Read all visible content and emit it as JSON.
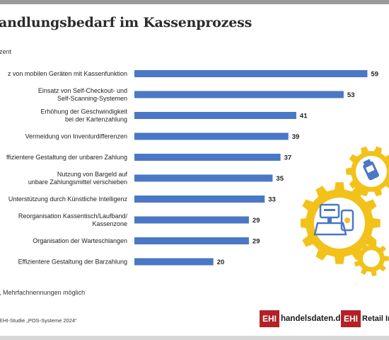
{
  "header": {
    "title": "andlungsbedarf im Kassenprozess",
    "unit_label": "zent"
  },
  "chart_data": {
    "type": "bar",
    "orientation": "horizontal",
    "title": "andlungsbedarf im Kassenprozess",
    "xlabel": "",
    "ylabel": "",
    "xlim": [
      0,
      60
    ],
    "grid": false,
    "bar_color": "#4a78c6",
    "categories": [
      [
        "z von mobilen Geräten mit Kassenfunktion"
      ],
      [
        "Einsatz von Self-Checkout- und",
        "Self-Scanning-Systemen"
      ],
      [
        "Erhöhung der Geschwindigkeit",
        "bei der Kartenzahlung"
      ],
      [
        "Vermeidung von Inventurdifferenzen"
      ],
      [
        "ffizientere Gestaltung der unbaren Zahlung"
      ],
      [
        "Nutzung von Bargeld auf",
        "unbare Zahlungsmittel verschieben"
      ],
      [
        "Unterstützung durch Künstliche Intelligenz"
      ],
      [
        "Reorganisation Kassentisch/Laufband/",
        "Kassenzone"
      ],
      [
        "Organisation der Warteschlangen"
      ],
      [
        "Effizientere Gestaltung der Barzahlung"
      ]
    ],
    "values": [
      59,
      53,
      41,
      39,
      37,
      35,
      33,
      29,
      29,
      20
    ]
  },
  "footer": {
    "footnote": ", Mehrfachnennungen möglich",
    "source": "EHI-Studie „POS-Systeme 2024“",
    "logo1": {
      "box": "EHI",
      "text": "handelsdaten.de"
    },
    "logo2": {
      "box": "EHI",
      "text": "Retail Ins"
    }
  },
  "colors": {
    "bar": "#4a78c6",
    "gear": "#f2c21b",
    "brand_red": "#b32025",
    "icon_blue": "#4a78c6"
  }
}
